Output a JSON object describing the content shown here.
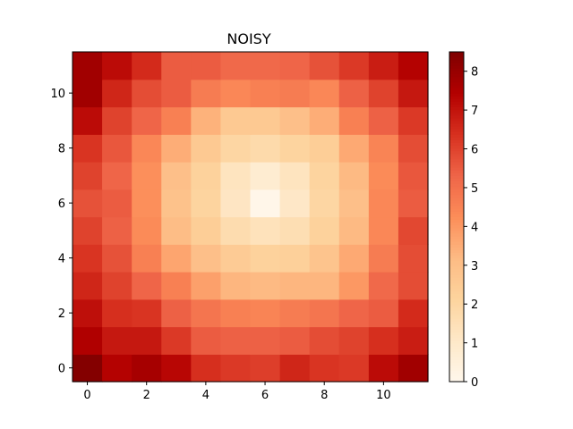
{
  "chart_data": {
    "type": "heatmap",
    "title": "NOISY",
    "xlabel": "",
    "ylabel": "",
    "colormap": "OrRd",
    "colorbar": {
      "min": 0,
      "max": 8.5,
      "ticks": [
        0,
        1,
        2,
        3,
        4,
        5,
        6,
        7,
        8
      ]
    },
    "x_ticks": [
      0,
      2,
      4,
      6,
      8,
      10
    ],
    "y_ticks": [
      0,
      2,
      4,
      6,
      8,
      10
    ],
    "xlim": [
      -0.5,
      11.5
    ],
    "ylim": [
      -0.5,
      11.5
    ],
    "origin": "lower",
    "grid": false,
    "rows_bottom_to_top": [
      [
        8.4,
        7.4,
        7.7,
        7.3,
        6.4,
        6.2,
        6.1,
        6.6,
        6.3,
        6.2,
        7.2,
        7.8
      ],
      [
        7.5,
        6.9,
        6.9,
        6.2,
        5.5,
        5.4,
        5.4,
        5.5,
        5.8,
        6.0,
        6.4,
        6.8
      ],
      [
        7.1,
        6.4,
        6.3,
        5.4,
        4.9,
        4.6,
        4.5,
        4.7,
        4.9,
        5.3,
        5.5,
        6.5
      ],
      [
        6.6,
        6.0,
        5.3,
        4.6,
        3.8,
        3.3,
        3.2,
        3.3,
        3.3,
        4.0,
        5.2,
        5.8
      ],
      [
        6.3,
        5.7,
        4.6,
        3.7,
        3.0,
        2.5,
        2.2,
        2.3,
        2.8,
        3.6,
        4.7,
        5.8
      ],
      [
        6.0,
        5.4,
        4.3,
        3.1,
        2.4,
        1.7,
        1.4,
        1.6,
        2.2,
        3.2,
        4.4,
        5.9
      ],
      [
        5.7,
        5.5,
        4.2,
        2.9,
        2.1,
        1.2,
        0.1,
        1.1,
        2.0,
        3.0,
        4.4,
        5.5
      ],
      [
        6.0,
        5.3,
        4.2,
        3.0,
        2.2,
        1.3,
        0.8,
        1.3,
        2.1,
        3.2,
        4.3,
        5.6
      ],
      [
        6.3,
        5.6,
        4.4,
        3.5,
        2.6,
        2.0,
        1.8,
        2.1,
        2.4,
        3.6,
        4.5,
        5.8
      ],
      [
        7.2,
        6.0,
        5.3,
        4.6,
        3.4,
        2.6,
        2.6,
        3.0,
        3.5,
        4.6,
        5.4,
        6.2
      ],
      [
        7.8,
        6.6,
        5.8,
        5.5,
        4.7,
        4.4,
        4.6,
        4.7,
        4.4,
        5.4,
        6.0,
        6.9
      ],
      [
        7.8,
        7.2,
        6.5,
        5.5,
        5.5,
        5.2,
        5.2,
        5.3,
        5.7,
        6.2,
        6.8,
        7.4
      ]
    ]
  }
}
